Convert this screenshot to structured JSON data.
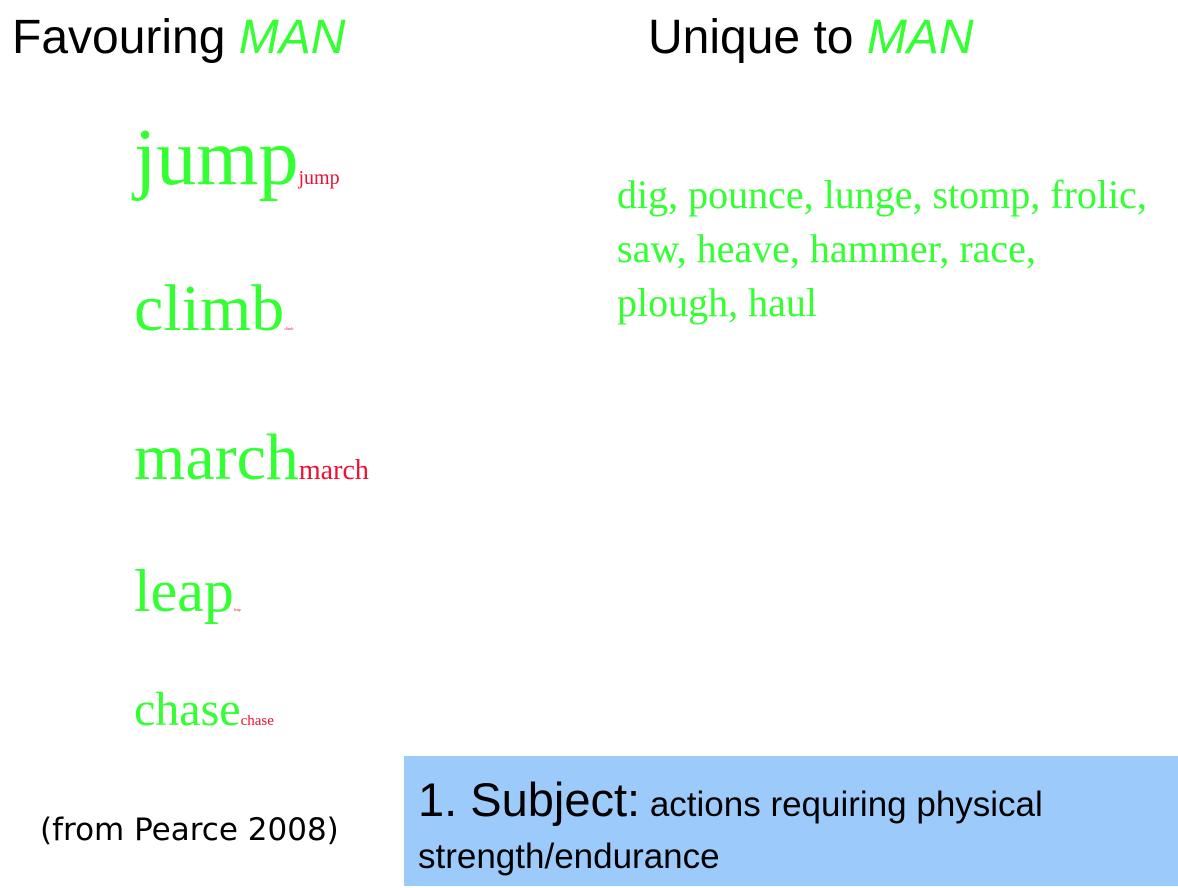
{
  "colors": {
    "accent_green": "#33ff33",
    "small_red": "#ee1133",
    "heading_black": "#000000",
    "callout_bg": "#9ccbfb"
  },
  "left_heading": {
    "prefix": "Favouring ",
    "accent": "MAN"
  },
  "right_heading": {
    "prefix": "Unique to ",
    "accent": "MAN"
  },
  "favouring_words": [
    {
      "big": "jump",
      "small": "jump"
    },
    {
      "big": "climb",
      "small": "climb"
    },
    {
      "big": "march",
      "small": "march"
    },
    {
      "big": "leap",
      "small": "leap"
    },
    {
      "big": "chase",
      "small": "chase"
    }
  ],
  "unique_words": "dig, pounce, lunge, stomp, frolic, saw, heave, hammer, race, plough, haul",
  "citation": "(from Pearce 2008)",
  "callout": {
    "lead": "1. Subject:",
    "body": " actions requiring physical strength/endurance"
  }
}
